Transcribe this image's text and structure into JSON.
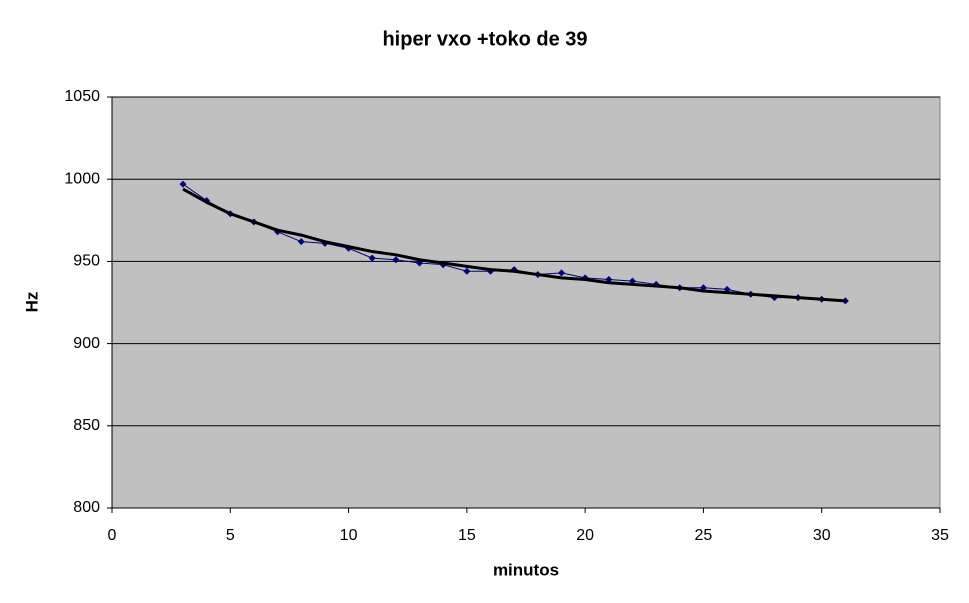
{
  "chart_data": {
    "type": "line",
    "title": "hiper vxo  +toko de 39",
    "x_label": "minutos",
    "y_label": "Hz",
    "xlim": [
      0,
      35
    ],
    "xticks": [
      0,
      5,
      10,
      15,
      20,
      25,
      30,
      35
    ],
    "ylim": [
      800,
      1050
    ],
    "yticks": [
      800,
      850,
      900,
      950,
      1000,
      1050
    ],
    "grid": true,
    "plot_background": "#c0c0c0",
    "x": [
      3,
      4,
      5,
      6,
      7,
      8,
      9,
      10,
      11,
      12,
      13,
      14,
      15,
      16,
      17,
      18,
      19,
      20,
      21,
      22,
      23,
      24,
      25,
      26,
      27,
      28,
      29,
      30,
      31
    ],
    "series": [
      {
        "color": "#000080",
        "marker": "diamond",
        "line_width": 1,
        "values": [
          997,
          987,
          979,
          974,
          968,
          962,
          961,
          958,
          952,
          951,
          949,
          948,
          944,
          944,
          945,
          942,
          943,
          940,
          939,
          938,
          936,
          934,
          934,
          933,
          930,
          928,
          928,
          927,
          926
        ]
      },
      {
        "color": "#000000",
        "marker": "none",
        "line_width": 3,
        "values": [
          994,
          986,
          979,
          974,
          969,
          966,
          962,
          959,
          956,
          954,
          951,
          949,
          947,
          945,
          944,
          942,
          940,
          939,
          937,
          936,
          935,
          934,
          932,
          931,
          930,
          929,
          928,
          927,
          926
        ]
      }
    ]
  }
}
